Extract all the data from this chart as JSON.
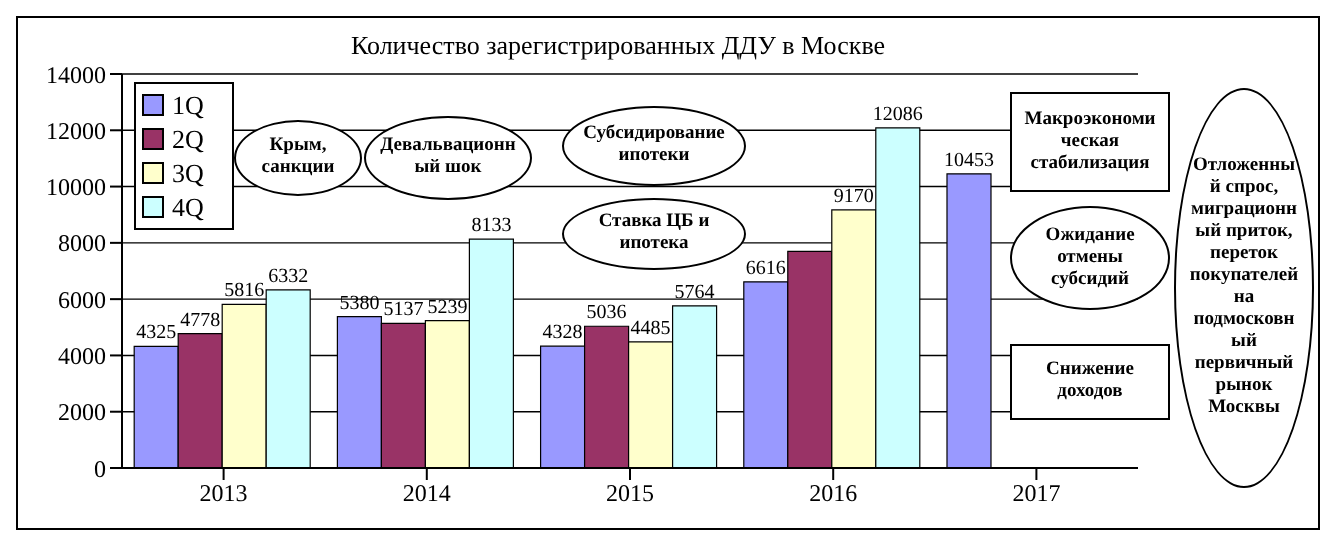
{
  "chart_data": {
    "type": "bar",
    "title": "Количество зарегистрированных ДДУ в Москве",
    "categories": [
      "2013",
      "2014",
      "2015",
      "2016",
      "2017"
    ],
    "series": [
      {
        "name": "1Q",
        "color": "#9999ff",
        "values": [
          4325,
          5380,
          4328,
          6616,
          10453
        ],
        "value_labels": [
          "4325",
          "5380",
          "4328",
          "6616",
          "10453"
        ]
      },
      {
        "name": "2Q",
        "color": "#993366",
        "values": [
          4778,
          5137,
          5036,
          7700,
          null
        ],
        "value_labels": [
          "4778",
          "5137",
          "5036",
          null,
          null
        ]
      },
      {
        "name": "3Q",
        "color": "#ffffcc",
        "values": [
          5816,
          5239,
          4485,
          9170,
          null
        ],
        "value_labels": [
          "5816",
          "5239",
          "4485",
          "9170",
          null
        ]
      },
      {
        "name": "4Q",
        "color": "#ccffff",
        "values": [
          6332,
          8133,
          5764,
          12086,
          null
        ],
        "value_labels": [
          "6332",
          "8133",
          "5764",
          "12086",
          null
        ]
      }
    ],
    "ylim": [
      0,
      14000
    ],
    "yticks": [
      0,
      2000,
      4000,
      6000,
      8000,
      10000,
      12000,
      14000
    ],
    "grid": "y",
    "legend": "top left",
    "annotations": [
      "Крым, санкции",
      "Девальвационный шок",
      "Субсидирование ипотеки",
      "Ставка ЦБ и ипотека",
      "Снижение доходов",
      "Макроэкономическая стабилизация",
      "Ожидание отмены субсидий",
      "Отложенный спрос, миграционный приток, переток покупателей на подмосковный первичный рынок Москвы"
    ]
  }
}
